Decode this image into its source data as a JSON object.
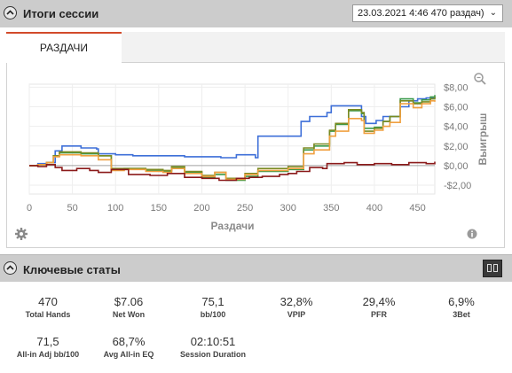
{
  "header": {
    "title": "Итоги сессии",
    "session": "23.03.2021 4:46 470 раздач)",
    "caret": "⌄"
  },
  "tabs": [
    {
      "label": "РАЗДАЧИ",
      "active": true
    }
  ],
  "chart_data": {
    "type": "line",
    "xlabel": "Раздачи",
    "ylabel": "Выигрыш",
    "xlim": [
      0,
      470
    ],
    "ylim": [
      -2.9,
      8.3
    ],
    "x_ticks": [
      0,
      50,
      100,
      150,
      200,
      250,
      300,
      350,
      400,
      450
    ],
    "x_tick_labels": [
      "0",
      "50",
      "100",
      "150",
      "200",
      "250",
      "300",
      "350",
      "400",
      "450"
    ],
    "y_ticks": [
      8,
      6,
      4,
      2,
      0,
      -2
    ],
    "y_tick_labels": [
      "$8,00",
      "$6,00",
      "$4,00",
      "$2,00",
      "$0,00",
      "-$2,00"
    ],
    "grid": true,
    "colors": {
      "blue": "#3d6fd8",
      "olive": "#7a8a22",
      "orange": "#f0a040",
      "green": "#3b9a4a",
      "red": "#8b1a1a"
    },
    "series": [
      {
        "color": "#3d6fd8",
        "x": [
          0,
          10,
          20,
          30,
          38,
          60,
          78,
          80,
          100,
          120,
          160,
          180,
          222,
          240,
          262,
          265,
          300,
          315,
          325,
          345,
          350,
          370,
          385,
          390,
          402,
          410,
          420,
          430,
          440,
          450,
          460,
          470
        ],
        "y": [
          0,
          0.2,
          0.3,
          1.5,
          2.0,
          1.8,
          1.7,
          1.2,
          1.1,
          1.0,
          1.0,
          0.9,
          0.8,
          1.1,
          0.8,
          3.0,
          3.0,
          4.5,
          5.0,
          5.4,
          6.1,
          6.1,
          5.0,
          4.3,
          4.6,
          5.0,
          5.0,
          6.0,
          6.6,
          6.8,
          6.9,
          7.0
        ]
      },
      {
        "color": "#3b9a4a",
        "x": [
          0,
          10,
          20,
          28,
          35,
          60,
          80,
          95,
          110,
          135,
          155,
          165,
          180,
          200,
          215,
          228,
          250,
          265,
          300,
          318,
          330,
          348,
          355,
          370,
          385,
          388,
          400,
          410,
          418,
          430,
          445,
          455,
          465,
          470
        ],
        "y": [
          0,
          0.1,
          0.3,
          1.0,
          1.3,
          1.2,
          1.0,
          -0.4,
          -0.3,
          -0.5,
          -0.6,
          -0.2,
          -0.7,
          -1.2,
          -0.9,
          -1.5,
          -1.1,
          -0.6,
          -0.4,
          1.6,
          2.0,
          3.5,
          4.2,
          5.6,
          5.3,
          3.8,
          3.9,
          4.5,
          5.0,
          6.8,
          6.4,
          6.7,
          7.0,
          7.2
        ]
      },
      {
        "color": "#7a8a22",
        "x": [
          0,
          10,
          20,
          28,
          35,
          60,
          80,
          95,
          110,
          135,
          155,
          165,
          180,
          200,
          215,
          228,
          250,
          265,
          300,
          318,
          330,
          348,
          355,
          370,
          385,
          388,
          400,
          410,
          418,
          430,
          445,
          455,
          465,
          470
        ],
        "y": [
          0,
          0.1,
          0.3,
          1.0,
          1.4,
          1.3,
          1.0,
          -0.3,
          -0.3,
          -0.4,
          -0.5,
          -0.1,
          -0.6,
          -1.0,
          -0.7,
          -1.3,
          -0.8,
          -0.3,
          -0.1,
          1.8,
          2.2,
          3.6,
          4.3,
          5.7,
          5.4,
          3.5,
          3.8,
          4.5,
          5.0,
          6.6,
          6.3,
          6.5,
          6.8,
          7.0
        ]
      },
      {
        "color": "#f0a040",
        "x": [
          0,
          10,
          20,
          28,
          35,
          60,
          80,
          95,
          110,
          135,
          155,
          165,
          180,
          200,
          215,
          228,
          250,
          265,
          300,
          318,
          330,
          348,
          355,
          370,
          385,
          388,
          400,
          410,
          418,
          430,
          445,
          455,
          465,
          470
        ],
        "y": [
          0,
          0.1,
          0.3,
          0.9,
          1.1,
          1.0,
          0.6,
          -0.5,
          -0.4,
          -0.6,
          -0.7,
          -0.3,
          -0.8,
          -1.1,
          -0.7,
          -1.4,
          -0.9,
          -0.5,
          -0.3,
          1.2,
          1.6,
          3.0,
          3.5,
          4.8,
          4.6,
          3.3,
          3.6,
          4.0,
          4.4,
          6.3,
          5.9,
          6.3,
          6.6,
          6.5
        ]
      },
      {
        "color": "#8b1a1a",
        "x": [
          0,
          10,
          20,
          30,
          38,
          55,
          70,
          80,
          95,
          115,
          140,
          160,
          180,
          200,
          220,
          240,
          255,
          270,
          290,
          300,
          310,
          325,
          340,
          345,
          365,
          380,
          400,
          420,
          440,
          460,
          470
        ],
        "y": [
          0,
          -0.1,
          0.1,
          -0.2,
          -0.5,
          -0.3,
          -0.5,
          -0.7,
          -0.4,
          -0.9,
          -1.0,
          -0.8,
          -1.2,
          -1.3,
          -1.5,
          -1.3,
          -1.2,
          -1.1,
          -0.9,
          -0.8,
          -0.6,
          -0.2,
          -0.3,
          0.2,
          0.3,
          0.1,
          0.2,
          0.1,
          0.3,
          0.2,
          0.4
        ]
      }
    ]
  },
  "stats_header": {
    "title": "Ключевые статы"
  },
  "stats": [
    {
      "value": "470",
      "label": "Total Hands"
    },
    {
      "value": "$7.06",
      "label": "Net Won"
    },
    {
      "value": "75,1",
      "label": "bb/100"
    },
    {
      "value": "32,8%",
      "label": "VPIP"
    },
    {
      "value": "29,4%",
      "label": "PFR"
    },
    {
      "value": "6,9%",
      "label": "3Bet"
    },
    {
      "value": "71,5",
      "label": "All-in Adj bb/100"
    },
    {
      "value": "68,7%",
      "label": "Avg All-in EQ"
    },
    {
      "value": "02:10:51",
      "label": "Session Duration"
    }
  ],
  "icons": {
    "collapse": "chevron-up-icon",
    "zoom": "magnifier-icon",
    "settings": "gear-icon",
    "info": "info-icon",
    "layout": "panes-icon"
  }
}
